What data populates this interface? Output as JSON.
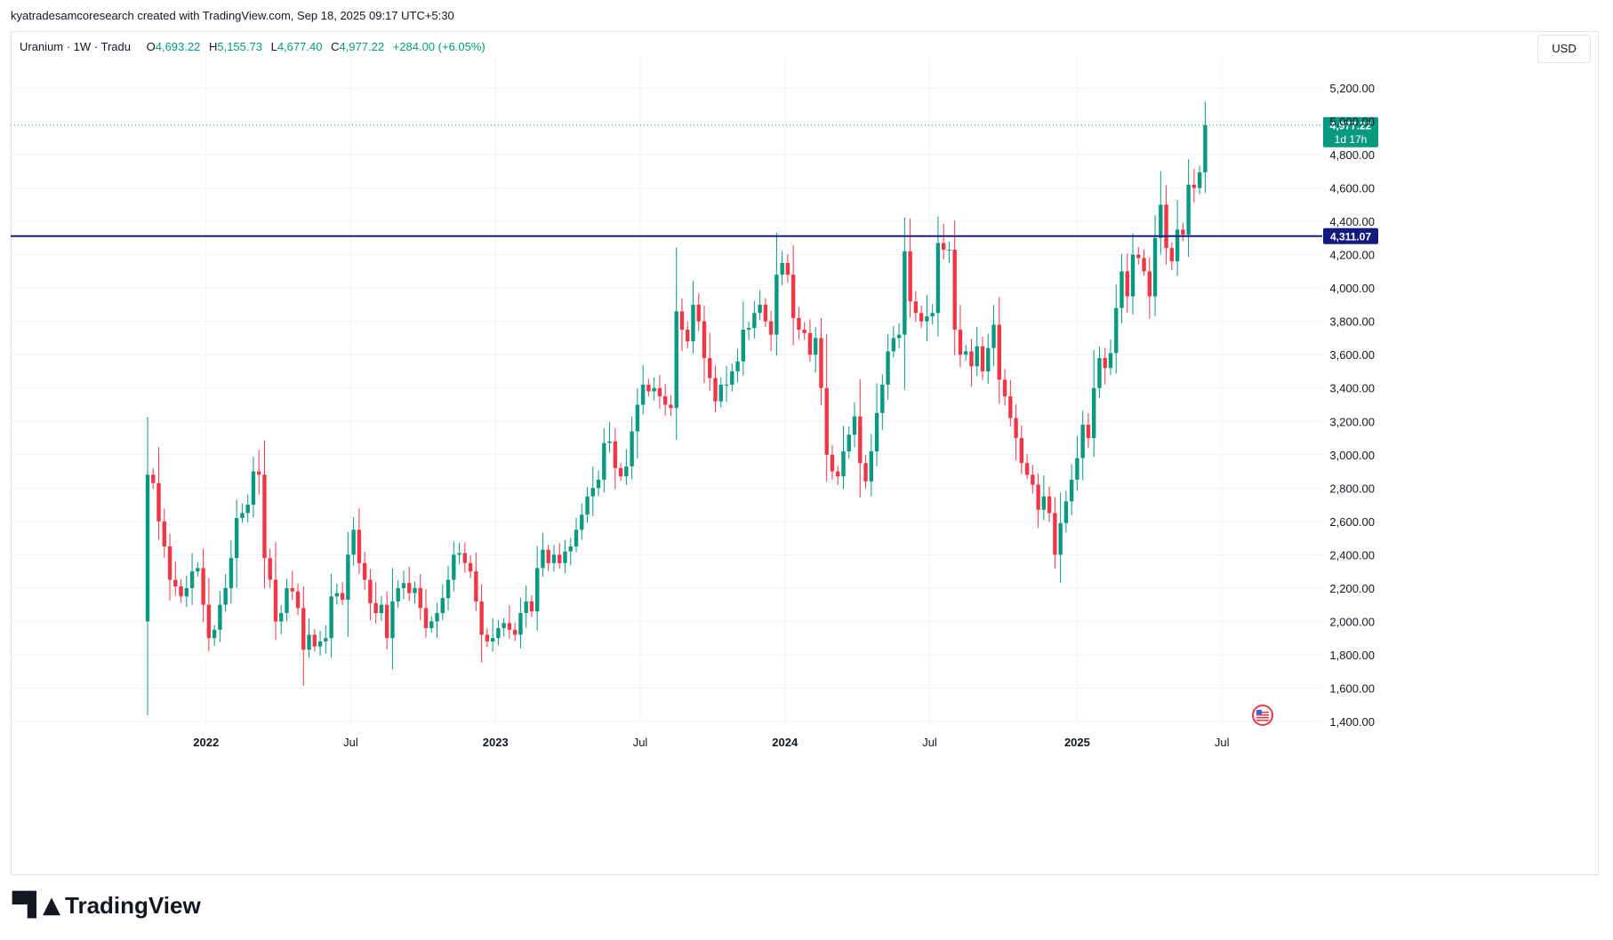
{
  "header": {
    "attribution": "kyatradesamcoresearch created with TradingView.com, Sep 18, 2025 09:17 UTC+5:30"
  },
  "legend": {
    "symbol": "Uranium · 1W · Tradu",
    "open_label": "O",
    "open": "4,693.22",
    "high_label": "H",
    "high": "5,155.73",
    "low_label": "L",
    "low": "4,677.40",
    "close_label": "C",
    "close": "4,977.22",
    "change": "+284.00 (+6.05%)"
  },
  "currency": "USD",
  "branding": {
    "name": "TradingView"
  },
  "colors": {
    "up": "#089981",
    "down": "#f23645",
    "level": "#131b80",
    "grid": "#f0f3fa",
    "price_tag": "#089981"
  },
  "chart_data": {
    "type": "candlestick",
    "title": "Uranium · 1W · Tradu",
    "ylabel": "USD",
    "ylim": [
      1300,
      5370
    ],
    "y_ticks": [
      1400,
      1600,
      1800,
      2000,
      2200,
      2400,
      2600,
      2800,
      3000,
      3200,
      3400,
      3600,
      3800,
      4000,
      4200,
      4400,
      4600,
      4800,
      5000,
      5200
    ],
    "x_ticks": [
      {
        "label": "2022",
        "week": 10.5,
        "bold": true
      },
      {
        "label": "Jul",
        "week": 36.5,
        "bold": false
      },
      {
        "label": "2023",
        "week": 62.5,
        "bold": true
      },
      {
        "label": "Jul",
        "week": 88.5,
        "bold": false
      },
      {
        "label": "2024",
        "week": 114.5,
        "bold": true
      },
      {
        "label": "Jul",
        "week": 140.5,
        "bold": false
      },
      {
        "label": "2025",
        "week": 167,
        "bold": true
      },
      {
        "label": "Jul",
        "week": 193,
        "bold": false
      }
    ],
    "horizontal_level": {
      "value": 4311.07,
      "label": "4,311.07"
    },
    "last_price": {
      "value": 4977.22,
      "label": "4,977.22",
      "countdown": "1d 17h"
    },
    "close": [
      2000,
      2880,
      2830,
      2600,
      2450,
      2250,
      2210,
      2150,
      2200,
      2300,
      2320,
      2100,
      1900,
      1950,
      2100,
      2200,
      2380,
      2620,
      2650,
      2700,
      2900,
      2880,
      2380,
      2250,
      2000,
      2050,
      2200,
      2180,
      2080,
      1830,
      1920,
      1850,
      1880,
      1900,
      2150,
      2170,
      2130,
      2400,
      2550,
      2350,
      2250,
      2110,
      2050,
      2100,
      1900,
      2120,
      2200,
      2230,
      2170,
      2200,
      2080,
      1960,
      2000,
      2050,
      2140,
      2250,
      2400,
      2410,
      2350,
      2300,
      2120,
      1920,
      1880,
      1900,
      1960,
      1990,
      1950,
      1920,
      2050,
      2120,
      2060,
      2320,
      2430,
      2350,
      2400,
      2350,
      2420,
      2450,
      2550,
      2640,
      2750,
      2800,
      2850,
      3070,
      3080,
      2920,
      2870,
      2930,
      3140,
      3300,
      3420,
      3380,
      3400,
      3350,
      3300,
      3280,
      3860,
      3750,
      3680,
      3900,
      3800,
      3580,
      3460,
      3320,
      3420,
      3420,
      3500,
      3560,
      3750,
      3760,
      3850,
      3900,
      3800,
      3720,
      4080,
      4150,
      4080,
      3820,
      3750,
      3730,
      3600,
      3700,
      3400,
      3000,
      2900,
      2870,
      3020,
      3120,
      3230,
      2950,
      2840,
      3020,
      3250,
      3420,
      3620,
      3700,
      3720,
      4220,
      3920,
      3850,
      3800,
      3830,
      3850,
      4270,
      4230,
      4230,
      3750,
      3600,
      3620,
      3530,
      3650,
      3500,
      3640,
      3780,
      3450,
      3350,
      3220,
      3100,
      2950,
      2880,
      2820,
      2670,
      2750,
      2650,
      2400,
      2590,
      2720,
      2850,
      2980,
      3180,
      3100,
      3400,
      3580,
      3520,
      3610,
      3880,
      4100,
      3950,
      4200,
      4180,
      4100,
      3950,
      4300,
      4500,
      4240,
      4160,
      4350,
      4320,
      4620,
      4600,
      4693,
      4977
    ]
  }
}
